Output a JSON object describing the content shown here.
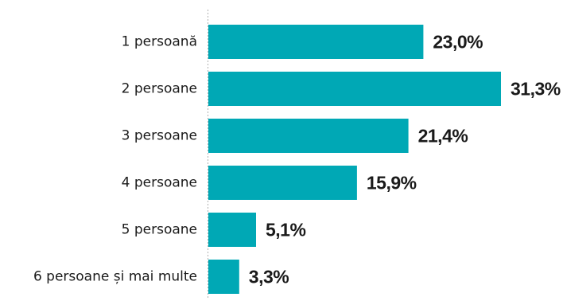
{
  "chart_data": {
    "type": "bar",
    "orientation": "horizontal",
    "categories": [
      "1 persoană",
      "2 persoane",
      "3 persoane",
      "4 persoane",
      "5 persoane",
      "6 persoane și mai multe"
    ],
    "values": [
      23.0,
      31.3,
      21.4,
      15.9,
      5.1,
      3.3
    ],
    "value_labels": [
      "23,0%",
      "31,3%",
      "21,4%",
      "15,9%",
      "5,1%",
      "3,3%"
    ],
    "unit": "%",
    "xlim": [
      0,
      31.3
    ],
    "bar_color": "#00A8B5",
    "axis_line_style": "dotted",
    "grid": false
  }
}
